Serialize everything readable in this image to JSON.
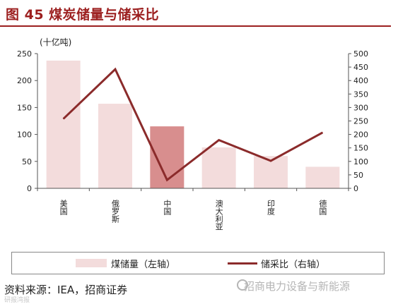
{
  "header": {
    "title": "图 45 煤炭储量与储采比"
  },
  "chart_data": {
    "type": "bar",
    "title": "",
    "categories": [
      "美国",
      "俄罗斯",
      "中国",
      "澳大利亚",
      "印度",
      "德国"
    ],
    "series": [
      {
        "name": "煤储量（左轴）",
        "type": "bar",
        "axis": "left",
        "values": [
          237,
          157,
          115,
          76,
          60,
          40
        ]
      },
      {
        "name": "储采比（右轴）",
        "type": "line",
        "axis": "right",
        "values": [
          258,
          442,
          31,
          179,
          102,
          207
        ]
      }
    ],
    "highlight_index": 2,
    "left_axis": {
      "label": "(十亿吨)",
      "min": 0,
      "max": 250,
      "ticks": [
        0,
        50,
        100,
        150,
        200,
        250
      ]
    },
    "right_axis": {
      "min": 0,
      "max": 500,
      "ticks": [
        0,
        50,
        100,
        150,
        200,
        250,
        300,
        350,
        400,
        450,
        500
      ]
    },
    "grid": false,
    "legend": "bottom",
    "colors": {
      "bar": "#f3dcdc",
      "bar_highlight": "#d88e8e",
      "line": "#8b2b2b"
    }
  },
  "legend": {
    "bar_label": "煤储量（左轴）",
    "line_label": "储采比（右轴）"
  },
  "footer": {
    "source": "资料来源：IEA，招商证券",
    "watermark": "招商电力设备与新能源",
    "watermark_bottom": "研报湾报"
  }
}
